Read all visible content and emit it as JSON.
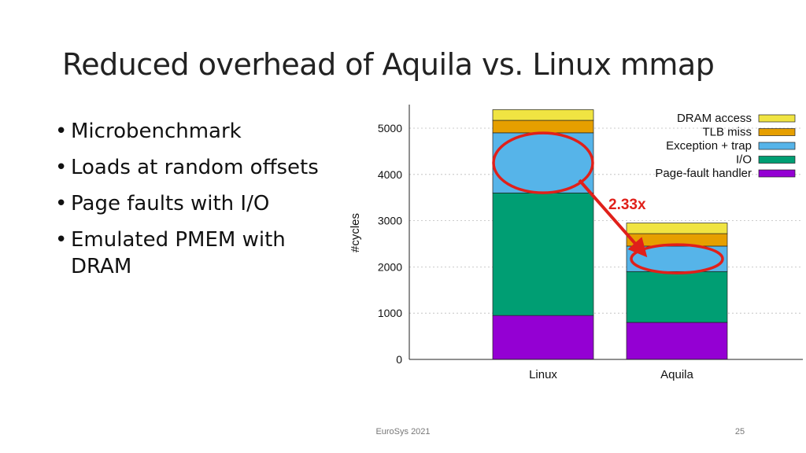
{
  "slide": {
    "title": "Reduced overhead of Aquila vs. Linux mmap",
    "bullets": [
      "Microbenchmark",
      "Loads at random offsets",
      "Page faults with I/O",
      "Emulated PMEM with DRAM"
    ],
    "footer": "EuroSys 2021",
    "page_number": "25"
  },
  "chart_data": {
    "type": "bar",
    "stacked": true,
    "categories": [
      "Linux",
      "Aquila"
    ],
    "ylabel": "#cycles",
    "xlabel": "",
    "ylim": [
      0,
      5500
    ],
    "yticks": [
      0,
      1000,
      2000,
      3000,
      4000,
      5000
    ],
    "grid": true,
    "legend_position": "top-right",
    "series": [
      {
        "name": "Page-fault handler",
        "color": "#9400d3",
        "values": [
          950,
          800
        ]
      },
      {
        "name": "I/O",
        "color": "#009e73",
        "values": [
          2650,
          1100
        ]
      },
      {
        "name": "Exception + trap",
        "color": "#56b4e9",
        "values": [
          1300,
          550
        ]
      },
      {
        "name": "TLB miss",
        "color": "#e69f00",
        "values": [
          270,
          270
        ]
      },
      {
        "name": "DRAM access",
        "color": "#f0e442",
        "values": [
          230,
          230
        ]
      }
    ],
    "annotation": {
      "text": "2.33x",
      "color": "#e0201a"
    }
  }
}
